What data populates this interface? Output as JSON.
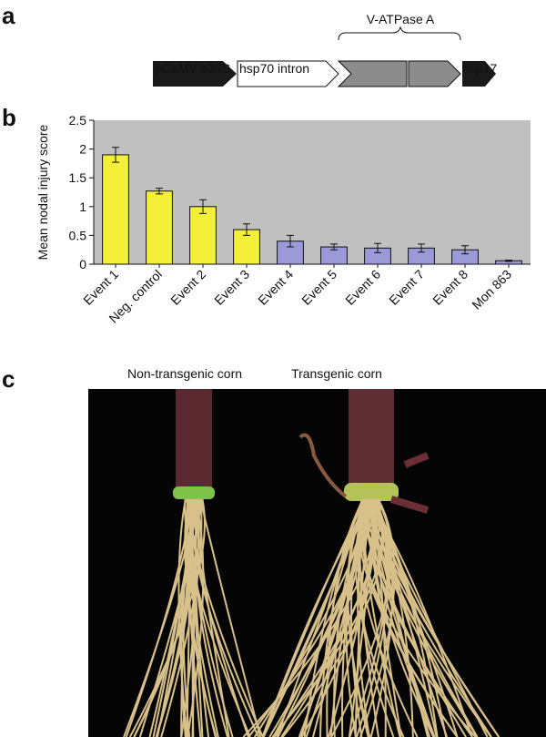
{
  "panels": {
    "a": "a",
    "b": "b",
    "c": "c"
  },
  "construct": {
    "promoter": "pCaMV e35S",
    "intron": "hsp70 intron",
    "gene": "V-ATPase A",
    "terminator": "hsp17"
  },
  "chart_data": {
    "type": "bar",
    "ylabel": "Mean nodal injury score",
    "categories": [
      "Event 1",
      "Neg. control",
      "Event 2",
      "Event 3",
      "Event 4",
      "Event 5",
      "Event 6",
      "Event 7",
      "Event 8",
      "Mon 863"
    ],
    "values": [
      1.9,
      1.27,
      1.0,
      0.6,
      0.4,
      0.3,
      0.28,
      0.28,
      0.25,
      0.06
    ],
    "errors": [
      0.13,
      0.05,
      0.12,
      0.1,
      0.1,
      0.05,
      0.08,
      0.07,
      0.07,
      0.01
    ],
    "colors": [
      "#f4ef3a",
      "#f4ef3a",
      "#f4ef3a",
      "#f4ef3a",
      "#9a9ad8",
      "#9a9ad8",
      "#9a9ad8",
      "#9a9ad8",
      "#9a9ad8",
      "#9a9ad8"
    ],
    "ylim": [
      0,
      2.5
    ],
    "yticks": [
      0,
      0.5,
      1,
      1.5,
      2,
      2.5
    ]
  },
  "photo": {
    "left": "Non-transgenic corn",
    "right": "Transgenic corn"
  }
}
